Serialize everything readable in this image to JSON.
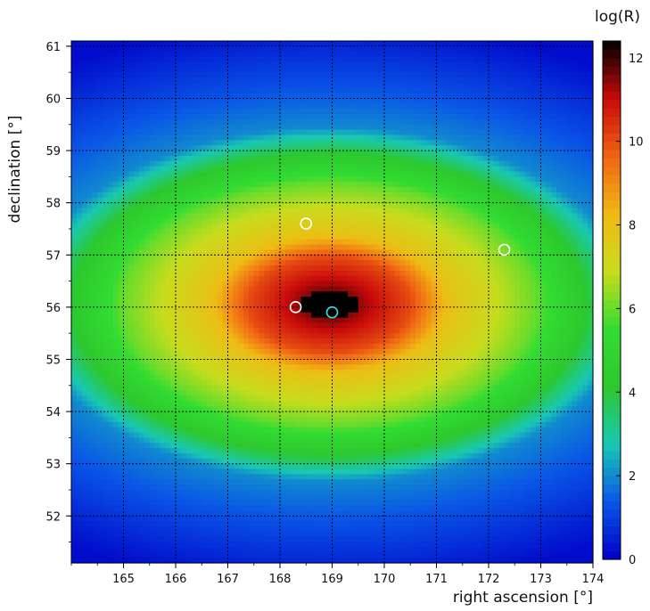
{
  "chart_data": {
    "type": "heatmap",
    "title": "",
    "xlabel": "right ascension [°]",
    "ylabel": "declination [°]",
    "colorbar_label": "log(R)",
    "xlim": [
      164.0,
      174.0
    ],
    "ylim": [
      51.1,
      61.1
    ],
    "zlim": [
      0,
      12.4
    ],
    "x_ticks": [
      "165",
      "166",
      "167",
      "168",
      "169",
      "170",
      "171",
      "172",
      "173",
      "174"
    ],
    "y_ticks": [
      "52",
      "53",
      "54",
      "55",
      "56",
      "57",
      "58",
      "59",
      "60",
      "61"
    ],
    "colorbar_ticks": [
      "0",
      "2",
      "4",
      "6",
      "8",
      "10",
      "12"
    ],
    "grid": true,
    "peak": {
      "x": 168.95,
      "y": 56.05,
      "value": 12.4
    },
    "contour_model": {
      "description_values": "log(R) falls off elliptically from the peak",
      "saturated_region": {
        "x": [
          168.4,
          169.5
        ],
        "y": [
          55.8,
          56.3
        ],
        "value_min": 12.0
      },
      "level_half_widths": [
        {
          "value": 10,
          "dx": 1.6,
          "dy": 0.9
        },
        {
          "value": 8,
          "dx": 2.3,
          "dy": 1.3
        },
        {
          "value": 6,
          "dx": 4.0,
          "dy": 2.3
        },
        {
          "value": 4,
          "dx": 5.0,
          "dy": 2.9
        },
        {
          "value": 2,
          "dx": 5.8,
          "dy": 3.4
        }
      ]
    },
    "markers": [
      {
        "x": 168.5,
        "y": 57.6,
        "color": "#ffffff"
      },
      {
        "x": 168.3,
        "y": 56.0,
        "color": "#ffffff"
      },
      {
        "x": 169.0,
        "y": 55.9,
        "color": "#33e0e8"
      },
      {
        "x": 172.3,
        "y": 57.1,
        "color": "#ffffff"
      }
    ],
    "colormap": [
      "#0000c8",
      "#0a55e6",
      "#19c8b4",
      "#2dc82d",
      "#32dc32",
      "#c8dc1e",
      "#f0b914",
      "#f06414",
      "#c80a0a",
      "#000000"
    ]
  }
}
